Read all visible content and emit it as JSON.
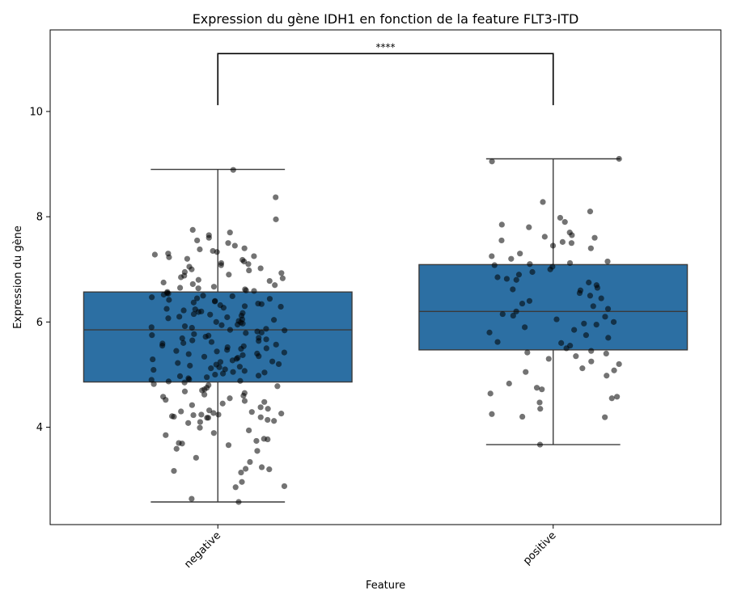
{
  "chart_data": {
    "type": "box",
    "title": "Expression du gène IDH1 en fonction de la feature FLT3-ITD",
    "xlabel": "Feature",
    "ylabel": "Expression du gène",
    "categories": [
      "negative",
      "positive"
    ],
    "ylim": [
      2.15,
      11.55
    ],
    "yticks": [
      4,
      6,
      8,
      10
    ],
    "grid": false,
    "box_color": "#2c6fa3",
    "point_color": "#000000",
    "boxes": [
      {
        "category": "negative",
        "q1": 4.86,
        "median": 5.85,
        "q3": 6.57,
        "whisker_low": 2.58,
        "whisker_high": 8.9
      },
      {
        "category": "positive",
        "q1": 5.47,
        "median": 6.2,
        "q3": 7.09,
        "whisker_low": 3.67,
        "whisker_high": 9.1
      }
    ],
    "significance": {
      "label": "****",
      "from": "negative",
      "to": "positive",
      "y": 11.1
    },
    "points": [
      [
        2.58,
        2.64,
        2.86,
        2.88,
        2.96,
        3.14,
        3.17,
        3.2,
        3.21,
        3.24,
        3.34,
        3.42,
        3.55,
        3.59,
        3.66,
        3.69,
        3.7,
        3.74,
        3.77,
        3.78,
        3.85,
        3.89,
        3.94,
        3.99,
        4.08,
        4.1,
        4.12,
        4.14,
        4.18,
        4.18,
        4.19,
        4.2,
        4.21,
        4.23,
        4.24,
        4.24,
        4.26,
        4.27,
        4.29,
        4.3,
        4.32,
        4.35,
        4.38,
        4.42,
        4.45,
        4.48,
        4.5,
        4.52,
        4.55,
        4.58,
        4.6,
        4.62,
        4.65,
        4.68,
        4.7,
        4.72,
        4.75,
        4.78,
        4.8,
        4.82,
        4.85,
        4.87,
        4.88,
        4.9,
        4.91,
        4.93,
        4.95,
        4.97,
        4.98,
        5.0,
        5.02,
        5.04,
        5.05,
        5.07,
        5.09,
        5.1,
        5.12,
        5.14,
        5.15,
        5.17,
        5.19,
        5.2,
        5.22,
        5.24,
        5.25,
        5.27,
        5.29,
        5.3,
        5.32,
        5.34,
        5.35,
        5.37,
        5.39,
        5.4,
        5.42,
        5.44,
        5.45,
        5.47,
        5.49,
        5.5,
        5.52,
        5.54,
        5.55,
        5.57,
        5.59,
        5.6,
        5.62,
        5.64,
        5.65,
        5.67,
        5.69,
        5.7,
        5.72,
        5.74,
        5.75,
        5.77,
        5.79,
        5.8,
        5.82,
        5.84,
        5.85,
        5.87,
        5.89,
        5.9,
        5.92,
        5.94,
        5.95,
        5.97,
        5.99,
        6.0,
        6.02,
        6.04,
        6.05,
        6.07,
        6.09,
        6.1,
        6.12,
        6.14,
        6.15,
        6.17,
        6.19,
        6.2,
        6.22,
        6.24,
        6.25,
        6.27,
        6.29,
        6.3,
        6.32,
        6.34,
        6.35,
        6.37,
        6.39,
        6.4,
        6.42,
        6.44,
        6.45,
        6.47,
        6.49,
        6.5,
        6.52,
        6.54,
        6.55,
        6.57,
        6.59,
        6.6,
        6.62,
        6.64,
        6.65,
        6.67,
        6.7,
        6.72,
        6.75,
        6.78,
        6.8,
        6.83,
        6.85,
        6.88,
        6.9,
        6.93,
        6.95,
        6.98,
        7.0,
        7.02,
        7.05,
        7.08,
        7.1,
        7.12,
        7.15,
        7.18,
        7.2,
        7.23,
        7.25,
        7.28,
        7.3,
        7.33,
        7.35,
        7.38,
        7.4,
        7.45,
        7.5,
        7.55,
        7.6,
        7.65,
        7.7,
        7.75,
        7.95,
        8.37,
        8.89
      ],
      [
        3.67,
        4.19,
        4.2,
        4.25,
        4.35,
        4.47,
        4.55,
        4.58,
        4.64,
        4.72,
        4.75,
        4.83,
        4.98,
        5.05,
        5.08,
        5.12,
        5.2,
        5.25,
        5.3,
        5.35,
        5.4,
        5.42,
        5.45,
        5.5,
        5.55,
        5.6,
        5.62,
        5.7,
        5.75,
        5.8,
        5.85,
        5.9,
        5.95,
        5.97,
        6.0,
        6.05,
        6.1,
        6.12,
        6.15,
        6.2,
        6.25,
        6.3,
        6.35,
        6.4,
        6.45,
        6.5,
        6.55,
        6.6,
        6.62,
        6.65,
        6.7,
        6.75,
        6.8,
        6.82,
        6.85,
        6.9,
        6.95,
        7.0,
        7.05,
        7.08,
        7.1,
        7.12,
        7.15,
        7.2,
        7.25,
        7.3,
        7.4,
        7.45,
        7.5,
        7.52,
        7.55,
        7.6,
        7.62,
        7.65,
        7.7,
        7.8,
        7.85,
        7.9,
        7.98,
        8.1,
        8.28,
        9.05,
        9.1
      ]
    ]
  }
}
